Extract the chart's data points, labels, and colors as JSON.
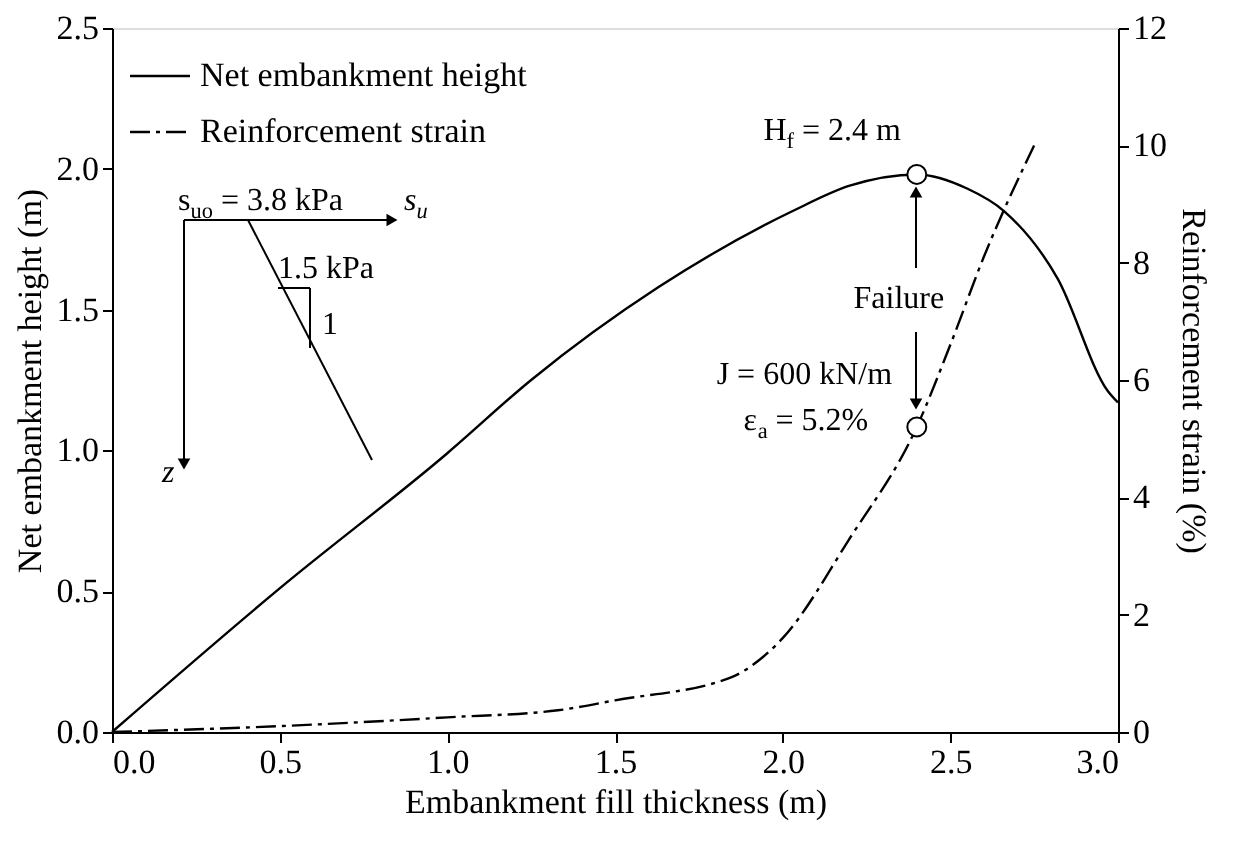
{
  "chart_data": {
    "type": "line",
    "xlabel": "Embankment fill thickness (m)",
    "ylabel": "Net embankment height (m)",
    "y2label": "Reinforcement strain (%)",
    "xlim": [
      0,
      3
    ],
    "ylim": [
      0,
      2.5
    ],
    "y2lim": [
      0,
      12
    ],
    "xticks": [
      {
        "value": 0,
        "label": "0.0"
      },
      {
        "value": 0.5,
        "label": "0.5"
      },
      {
        "value": 1,
        "label": "1.0"
      },
      {
        "value": 1.5,
        "label": "1.5"
      },
      {
        "value": 2,
        "label": "2.0"
      },
      {
        "value": 2.5,
        "label": "2.5"
      },
      {
        "value": 3,
        "label": "3.0"
      }
    ],
    "yticks": [
      {
        "value": 0,
        "label": "0.0"
      },
      {
        "value": 0.5,
        "label": "0.5"
      },
      {
        "value": 1,
        "label": "1.0"
      },
      {
        "value": 1.5,
        "label": "1.5"
      },
      {
        "value": 2,
        "label": "2.0"
      },
      {
        "value": 2.5,
        "label": "2.5"
      }
    ],
    "y2ticks": [
      0,
      2,
      4,
      6,
      8,
      10,
      12
    ],
    "grid": false,
    "legend": "top left",
    "series": [
      {
        "name": "Net embankment height",
        "color": "#000000",
        "line_style": "solid",
        "x": [
          0,
          0.5,
          1.0,
          1.25,
          1.63,
          2.03,
          2.2,
          2.4,
          2.55,
          2.66,
          2.82,
          2.97,
          3.0
        ],
        "values": [
          0,
          0.51,
          0.99,
          1.25,
          1.58,
          1.85,
          1.94,
          1.98,
          1.93,
          1.85,
          1.61,
          1.21,
          1.17
        ]
      },
      {
        "name": "Reinforcement strain",
        "color": "#000000",
        "line_style": "dashdot",
        "axis": "y2",
        "x": [
          0,
          0.5,
          1.0,
          1.33,
          1.5,
          1.85,
          1.9,
          2.0,
          2.2,
          2.4,
          2.5,
          2.6,
          2.75
        ],
        "values": [
          0,
          0.1,
          0.25,
          0.37,
          0.54,
          0.94,
          1.1,
          1.6,
          3.3,
          5.2,
          6.6,
          8.1,
          10.0
        ]
      },
      {
        "type": "scatter",
        "marker": "circle",
        "color": "#000000",
        "x": [
          2.4
        ],
        "values": [
          1.98
        ]
      },
      {
        "type": "scatter",
        "marker": "circle",
        "color": "#000000",
        "axis": "y2",
        "x": [
          2.4
        ],
        "values": [
          5.2
        ]
      }
    ],
    "annotations": [
      {
        "text": "H$_{f}$ = 2.4 m",
        "x": 2.4,
        "y": 1.98
      },
      {
        "text": "Failure",
        "x": 2.4,
        "y": 1.98
      },
      "J = 600 kN/m",
      "ε$_{a}$ = 5.2%",
      "s$_{uo}$ = 3.8 kPa",
      "s$_{u}$",
      "1.5 kPa",
      "1",
      "z"
    ]
  }
}
